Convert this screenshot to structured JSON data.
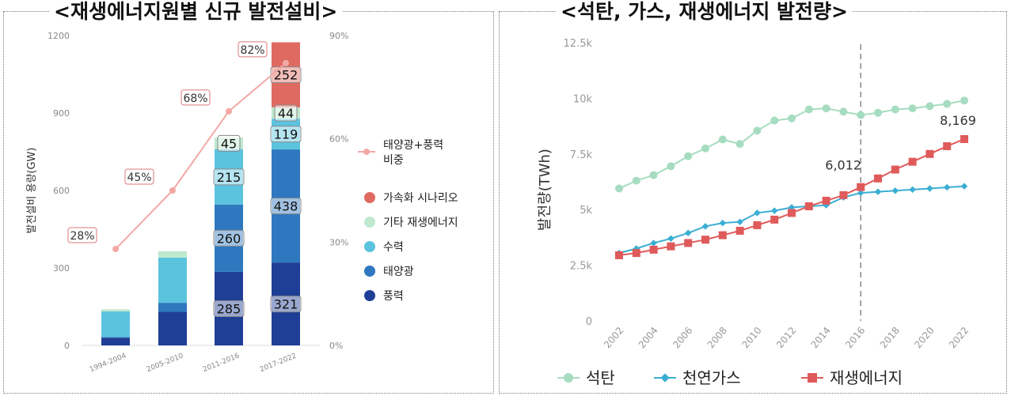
{
  "titles": {
    "left": "<재생에너지원별 신규 발전설비>",
    "right": "<석탄, 가스, 재생에너지 발전량>"
  },
  "chart_data": [
    {
      "type": "bar",
      "stacked": true,
      "title": "<재생에너지원별 신규 발전설비>",
      "ylabel": "발전설비 용량(GW)",
      "ylim": [
        0,
        1200
      ],
      "yticks": [
        "0",
        "300",
        "600",
        "900",
        "1200"
      ],
      "y2lim": [
        0,
        90
      ],
      "y2ticks": [
        "0%",
        "30%",
        "60%",
        "90%"
      ],
      "categories": [
        "1994-2004",
        "2005-2010",
        "2011-2016",
        "2017-2022"
      ],
      "series": [
        {
          "name": "풍력",
          "color": "#1f3f96",
          "values": [
            30,
            130,
            285,
            321
          ]
        },
        {
          "name": "태양광",
          "color": "#2f78bf",
          "values": [
            2,
            35,
            260,
            438
          ]
        },
        {
          "name": "수력",
          "color": "#5cc3df",
          "values": [
            100,
            175,
            215,
            119
          ]
        },
        {
          "name": "기타 재생에너지",
          "color": "#bfe8cf",
          "values": [
            8,
            25,
            45,
            44
          ]
        },
        {
          "name": "가속화 시나리오",
          "color": "#df6a62",
          "values": [
            0,
            0,
            0,
            252
          ]
        }
      ],
      "bar_labels": [
        {
          "category": "2011-2016",
          "series": "풍력",
          "label": "285"
        },
        {
          "category": "2011-2016",
          "series": "태양광",
          "label": "260"
        },
        {
          "category": "2011-2016",
          "series": "수력",
          "label": "215"
        },
        {
          "category": "2011-2016",
          "series": "기타 재생에너지",
          "label": "45"
        },
        {
          "category": "2017-2022",
          "series": "풍력",
          "label": "321"
        },
        {
          "category": "2017-2022",
          "series": "태양광",
          "label": "438"
        },
        {
          "category": "2017-2022",
          "series": "수력",
          "label": "119"
        },
        {
          "category": "2017-2022",
          "series": "기타 재생에너지",
          "label": "44"
        },
        {
          "category": "2017-2022",
          "series": "가속화 시나리오",
          "label": "252"
        }
      ],
      "share_line": {
        "name": "태양광+풍력 비중",
        "name_lines": [
          "태양광+풍력",
          "비중"
        ],
        "color": "#f2a8a4",
        "values": [
          28,
          45,
          68,
          82
        ],
        "labels": [
          "28%",
          "45%",
          "68%",
          "82%"
        ]
      },
      "legend_order": [
        "가속화 시나리오",
        "기타 재생에너지",
        "수력",
        "태양광",
        "풍력"
      ]
    },
    {
      "type": "line",
      "title": "<석탄, 가스, 재생에너지 발전량>",
      "ylabel": "발전량(TWh)",
      "ylim": [
        0,
        12500
      ],
      "yticks": [
        "0",
        "2.5k",
        "5k",
        "7.5k",
        "10k",
        "12.5k"
      ],
      "x": [
        2002,
        2003,
        2004,
        2005,
        2006,
        2007,
        2008,
        2009,
        2010,
        2011,
        2012,
        2013,
        2014,
        2015,
        2016,
        2017,
        2018,
        2019,
        2020,
        2021,
        2022
      ],
      "xticks": [
        "2002",
        "2004",
        "2006",
        "2008",
        "2010",
        "2012",
        "2014",
        "2016",
        "2018",
        "2020",
        "2022"
      ],
      "series": [
        {
          "name": "석탄",
          "color": "#a6dcc0",
          "marker": "circle",
          "values": [
            5950,
            6300,
            6550,
            6950,
            7400,
            7750,
            8150,
            7950,
            8550,
            9000,
            9100,
            9500,
            9550,
            9400,
            9250,
            9350,
            9500,
            9550,
            9650,
            9750,
            9900
          ]
        },
        {
          "name": "천연가스",
          "color": "#3aaed3",
          "marker": "diamond",
          "values": [
            3050,
            3250,
            3500,
            3700,
            3950,
            4250,
            4400,
            4450,
            4850,
            4950,
            5100,
            5150,
            5200,
            5550,
            5750,
            5800,
            5850,
            5900,
            5950,
            6000,
            6050
          ]
        },
        {
          "name": "재생에너지",
          "color": "#df5a5a",
          "marker": "square",
          "values": [
            2950,
            3050,
            3200,
            3350,
            3500,
            3650,
            3850,
            4050,
            4300,
            4550,
            4850,
            5150,
            5400,
            5650,
            6012,
            6400,
            6800,
            7150,
            7500,
            7850,
            8169
          ]
        }
      ],
      "annotations": [
        {
          "x": 2016,
          "series": "재생에너지",
          "label": "6,012"
        },
        {
          "x": 2022,
          "series": "재생에너지",
          "label": "8,169"
        }
      ],
      "vline_x": 2016
    }
  ]
}
